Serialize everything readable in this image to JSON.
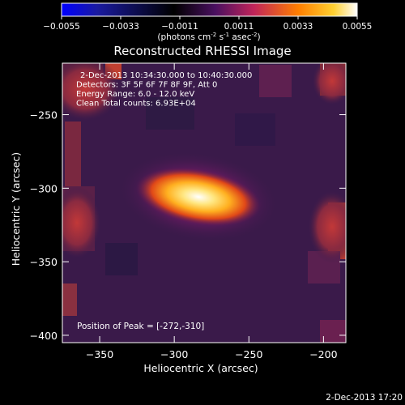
{
  "colorbar": {
    "ticks": [
      "-0.0055",
      "-0.0033",
      "-0.0011",
      "0.0011",
      "0.0033",
      "0.0055"
    ],
    "units_main": "(photons cm",
    "units_exp1": "-2",
    "units_mid": " s",
    "units_exp2": "-1",
    "units_end": " asec",
    "units_exp3": "-2",
    "units_close": ")"
  },
  "chart_data": {
    "type": "heatmap",
    "title": "Reconstructed RHESSI Image",
    "xlabel": "Heliocentric X (arcsec)",
    "ylabel": "Heliocentric Y (arcsec)",
    "xlim": [
      -375,
      -185
    ],
    "ylim": [
      -405,
      -215
    ],
    "xticks": [
      -350,
      -300,
      -250,
      -200
    ],
    "yticks": [
      -250,
      -300,
      -350,
      -400
    ],
    "colorbar_range": [
      -0.0055,
      0.0055
    ],
    "colormap": [
      "#0000ff",
      "#000000",
      "#5a1a6e",
      "#c0245a",
      "#ff7e00",
      "#ffd030",
      "#ffffff"
    ],
    "annotations": [
      "2-Dec-2013 10:34:30.000 to 10:40:30.000",
      "Detectors: 3F 5F 6F 7F 8F 9F, Att 0",
      "Energy Range: 6.0 - 12.0 keV",
      "Clean     Total counts: 6.93E+04"
    ],
    "peak_label": "Position of Peak = [-272,-310]",
    "peak": {
      "x": -272,
      "y": -310
    }
  },
  "footer": {
    "timestamp": "2-Dec-2013 17:20"
  }
}
